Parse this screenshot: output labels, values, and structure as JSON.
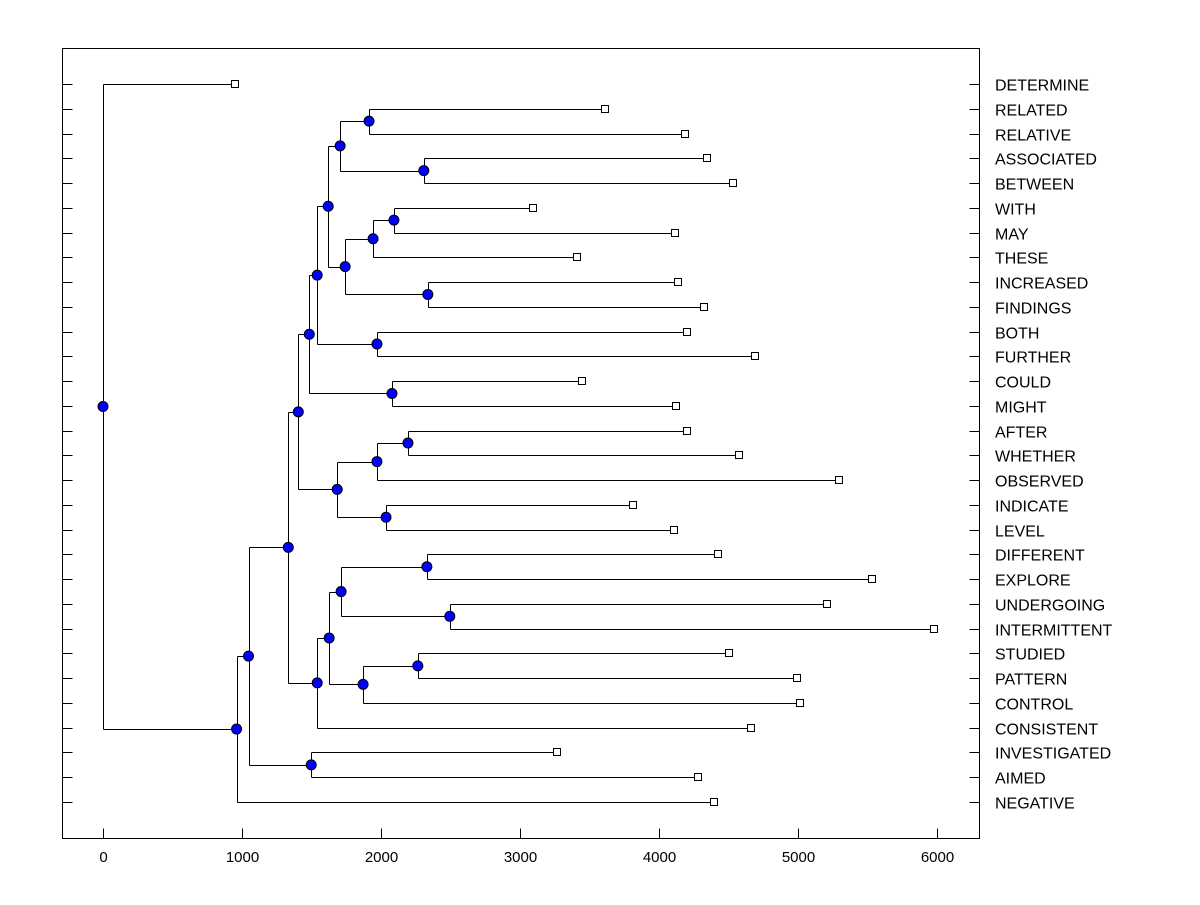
{
  "chart_data": {
    "type": "dendrogram",
    "title": "",
    "xlabel": "",
    "ylabel": "",
    "xlim": [
      -295,
      6300
    ],
    "xticks": [
      0,
      1000,
      2000,
      3000,
      4000,
      5000,
      6000
    ],
    "xtick_labels": [
      "0",
      "1000",
      "2000",
      "3000",
      "4000",
      "5000",
      "6000"
    ],
    "grid": false,
    "node_color": "#0000ff",
    "leaves": [
      "DETERMINE",
      "RELATED",
      "RELATIVE",
      "ASSOCIATED",
      "BETWEEN",
      "WITH",
      "MAY",
      "THESE",
      "INCREASED",
      "FINDINGS",
      "BOTH",
      "FURTHER",
      "COULD",
      "MIGHT",
      "AFTER",
      "WHETHER",
      "OBSERVED",
      "INDICATE",
      "LEVEL",
      "DIFFERENT",
      "EXPLORE",
      "UNDERGOING",
      "INTERMITTENT",
      "STUDIED",
      "PATTERN",
      "CONTROL",
      "CONSISTENT",
      "INVESTIGATED",
      "AIMED",
      "NEGATIVE"
    ],
    "tree": {
      "height": 0,
      "children": [
        {
          "leaf": "DETERMINE",
          "height": 953
        },
        {
          "height": 961,
          "children": [
            {
              "height": 1047,
              "children": [
                {
                  "height": 1333,
                  "children": [
                    {
                      "height": 1405,
                      "children": [
                        {
                          "height": 1484,
                          "children": [
                            {
                              "height": 1541,
                              "children": [
                                {
                                  "height": 1620,
                                  "children": [
                                    {
                                      "height": 1706,
                                      "children": [
                                        {
                                          "height": 1914,
                                          "children": [
                                            {
                                              "leaf": "RELATED",
                                              "height": 3613
                                            },
                                            {
                                              "leaf": "RELATIVE",
                                              "height": 4186
                                            }
                                          ]
                                        },
                                        {
                                          "height": 2308,
                                          "children": [
                                            {
                                              "leaf": "ASSOCIATED",
                                              "height": 4344
                                            },
                                            {
                                              "leaf": "BETWEEN",
                                              "height": 4530
                                            }
                                          ]
                                        }
                                      ]
                                    },
                                    {
                                      "height": 1742,
                                      "children": [
                                        {
                                          "height": 1943,
                                          "children": [
                                            {
                                              "height": 2093,
                                              "children": [
                                                {
                                                  "leaf": "WITH",
                                                  "height": 3090
                                                },
                                                {
                                                  "leaf": "MAY",
                                                  "height": 4115
                                                }
                                              ]
                                            },
                                            {
                                              "leaf": "THESE",
                                              "height": 3412
                                            }
                                          ]
                                        },
                                        {
                                          "height": 2337,
                                          "children": [
                                            {
                                              "leaf": "INCREASED",
                                              "height": 4136
                                            },
                                            {
                                              "leaf": "FINDINGS",
                                              "height": 4323
                                            }
                                          ]
                                        }
                                      ]
                                    }
                                  ]
                                },
                                {
                                  "height": 1971,
                                  "children": [
                                    {
                                      "leaf": "BOTH",
                                      "height": 4201
                                    },
                                    {
                                      "leaf": "FURTHER",
                                      "height": 4688
                                    }
                                  ]
                                }
                              ]
                            },
                            {
                              "height": 2079,
                              "children": [
                                {
                                  "leaf": "COULD",
                                  "height": 3448
                                },
                                {
                                  "leaf": "MIGHT",
                                  "height": 4122
                                }
                              ]
                            }
                          ]
                        },
                        {
                          "height": 1685,
                          "children": [
                            {
                              "height": 1971,
                              "children": [
                                {
                                  "height": 2194,
                                  "children": [
                                    {
                                      "leaf": "AFTER",
                                      "height": 4201
                                    },
                                    {
                                      "leaf": "WHETHER",
                                      "height": 4573
                                    }
                                  ]
                                },
                                {
                                  "leaf": "OBSERVED",
                                  "height": 5297
                                }
                              ]
                            },
                            {
                              "height": 2036,
                              "children": [
                                {
                                  "leaf": "INDICATE",
                                  "height": 3814
                                },
                                {
                                  "leaf": "LEVEL",
                                  "height": 4108
                                }
                              ]
                            }
                          ]
                        }
                      ]
                    },
                    {
                      "height": 1541,
                      "children": [
                        {
                          "height": 1627,
                          "children": [
                            {
                              "height": 1713,
                              "children": [
                                {
                                  "height": 2330,
                                  "children": [
                                    {
                                      "leaf": "DIFFERENT",
                                      "height": 4423
                                    },
                                    {
                                      "leaf": "EXPLORE",
                                      "height": 5534
                                    }
                                  ]
                                },
                                {
                                  "height": 2495,
                                  "children": [
                                    {
                                      "leaf": "UNDERGOING",
                                      "height": 5211
                                    },
                                    {
                                      "leaf": "INTERMITTENT",
                                      "height": 5978
                                    }
                                  ]
                                }
                              ]
                            },
                            {
                              "height": 1871,
                              "children": [
                                {
                                  "height": 2265,
                                  "children": [
                                    {
                                      "leaf": "STUDIED",
                                      "height": 4502
                                    },
                                    {
                                      "leaf": "PATTERN",
                                      "height": 4996
                                    }
                                  ]
                                },
                                {
                                  "leaf": "CONTROL",
                                  "height": 5011
                                }
                              ]
                            }
                          ]
                        },
                        {
                          "leaf": "CONSISTENT",
                          "height": 4659
                        }
                      ]
                    }
                  ]
                },
                {
                  "height": 1498,
                  "children": [
                    {
                      "leaf": "INVESTIGATED",
                      "height": 3269
                    },
                    {
                      "leaf": "AIMED",
                      "height": 4280
                    }
                  ]
                }
              ]
            },
            {
              "leaf": "NEGATIVE",
              "height": 4394
            }
          ]
        }
      ]
    }
  }
}
